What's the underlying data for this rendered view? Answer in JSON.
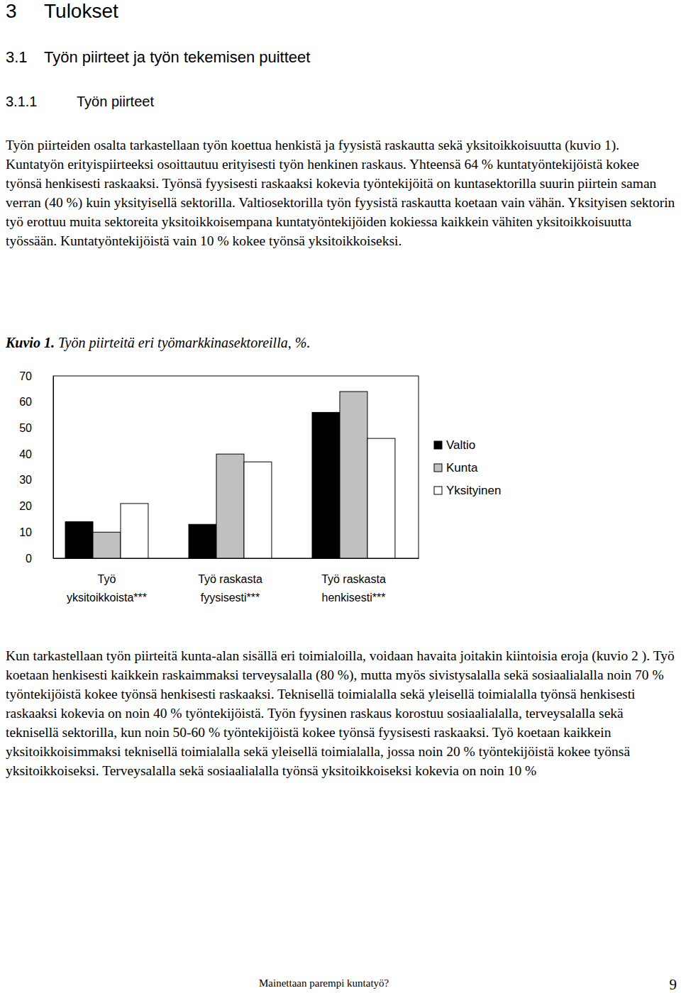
{
  "document": {
    "headings": [
      {
        "number": "3",
        "title": "Tulokset"
      },
      {
        "number": "3.1",
        "title": "Työn piirteet ja työn tekemisen puitteet"
      },
      {
        "number": "3.1.1",
        "title": "Työn piirteet"
      }
    ],
    "paragraphs": [
      "Työn piirteiden osalta tarkastellaan työn koettua henkistä ja fyysistä raskautta sekä yksitoikkoisuutta (kuvio 1). Kuntatyön erityispiirteeksi osoittautuu erityisesti työn henkinen raskaus. Yhteensä 64 % kuntatyöntekijöistä kokee työnsä henkisesti raskaaksi. Työnsä fyysisesti raskaaksi kokevia työntekijöitä on kuntasektorilla suurin piirtein saman verran (40 %) kuin yksityisellä sektorilla. Valtiosektorilla työn fyysistä raskautta koetaan vain vähän. Yksityisen sektorin työ erottuu muita sektoreita yksitoikkoisempana kuntatyöntekijöiden kokiessa kaikkein vähiten yksitoikkoisuutta työssään. Kuntatyöntekijöistä vain 10 % kokee työnsä yksitoikkoiseksi.",
      "Kun tarkastellaan työn piirteitä kunta-alan sisällä eri toimialoilla, voidaan havaita joitakin kiintoisia eroja (kuvio 2 ). Työ koetaan henkisesti kaikkein raskaimmaksi terveysalalla (80 %), mutta myös sivistysalalla sekä sosiaalialalla noin 70 % työntekijöistä kokee työnsä henkisesti raskaaksi. Teknisellä toimialalla sekä yleisellä toimialalla työnsä henkisesti raskaaksi kokevia on noin 40 % työntekijöistä. Työn fyysinen raskaus korostuu sosiaalialalla, terveysalalla sekä teknisellä sektorilla, kun noin 50-60 % työntekijöistä kokee työnsä fyysisesti raskaaksi. Työ koetaan kaikkein yksitoikkoisimmaksi teknisellä toimialalla sekä yleisellä toimialalla, jossa noin 20 % työntekijöistä kokee työnsä yksitoikkoiseksi. Terveysalalla sekä sosiaalialalla työnsä yksitoikkoiseksi kokevia on noin 10 %"
    ],
    "figure": {
      "label": "Kuvio 1.",
      "caption": "Työn piirteitä eri työmarkkinasektoreilla, %."
    },
    "footer": {
      "title": "Mainettaan parempi kuntatyö?",
      "page": 9
    }
  },
  "chart_data": {
    "type": "bar",
    "categories": [
      "Työ\nyksitoikkoista***",
      "Työ raskasta\nfyysisesti***",
      "Työ raskasta\nhenkisesti***"
    ],
    "series": [
      {
        "name": "Valtio",
        "color": "#000000",
        "values": [
          14,
          13,
          56
        ]
      },
      {
        "name": "Kunta",
        "color": "#c0c0c0",
        "values": [
          10,
          40,
          64
        ]
      },
      {
        "name": "Yksityinen",
        "color": "#ffffff",
        "values": [
          21,
          37,
          46
        ]
      }
    ],
    "ylim": [
      0,
      70
    ],
    "yticks": [
      0,
      10,
      20,
      30,
      40,
      50,
      60,
      70
    ],
    "grid": false,
    "legend": "right"
  }
}
